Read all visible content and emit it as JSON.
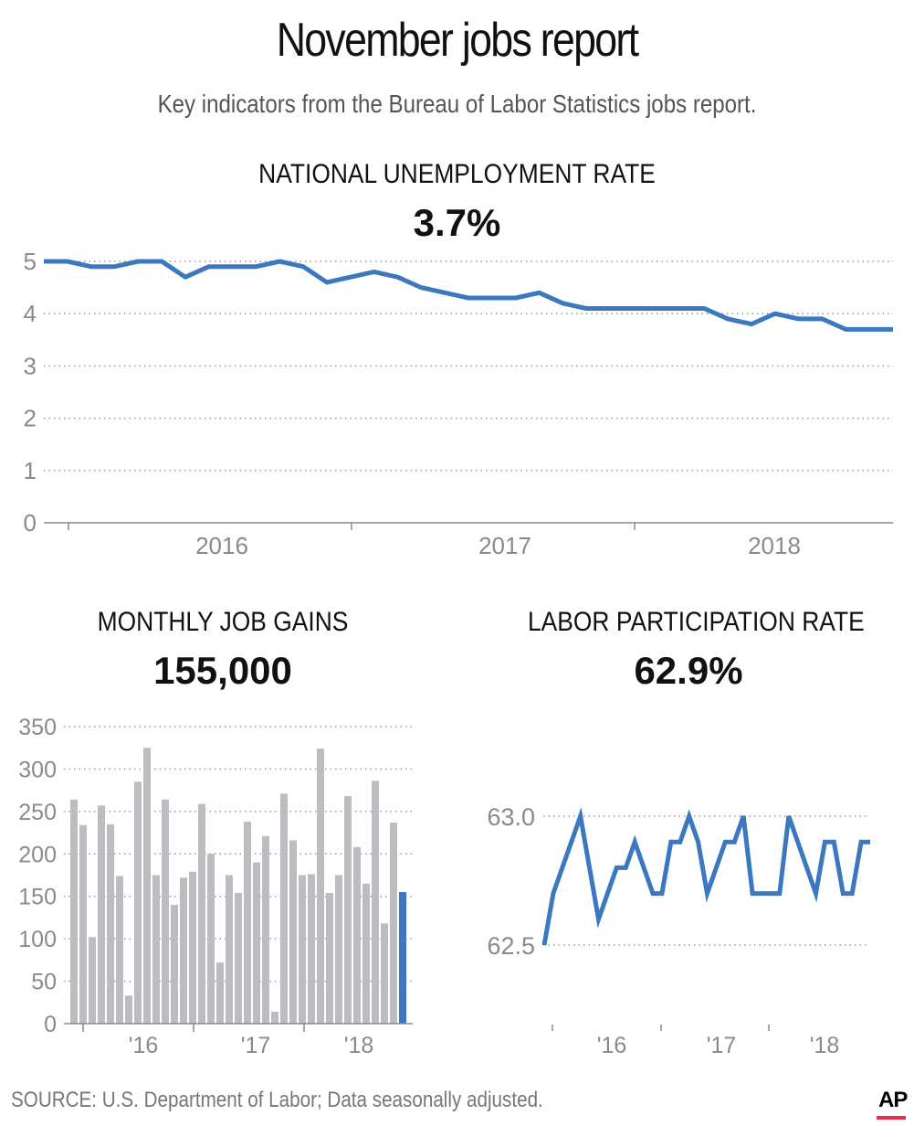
{
  "header": {
    "title": "November jobs report",
    "subtitle": "Key indicators from the Bureau of Labor Statistics jobs report."
  },
  "footer": {
    "source": "SOURCE: U.S. Department of Labor; Data seasonally adjusted.",
    "logo": "AP"
  },
  "colors": {
    "line": "#3b78c0",
    "bar": "#bcbdc0",
    "highlight_bar": "#3b78c0",
    "grid": "#999999",
    "logo_underline": "#e8304a"
  },
  "chart_data": [
    {
      "type": "line",
      "title": "NATIONAL UNEMPLOYMENT RATE",
      "headline_value": "3.7%",
      "ylim": [
        0,
        5
      ],
      "yticks": [
        "0",
        "1",
        "2",
        "3",
        "4",
        "5"
      ],
      "xtick_labels": [
        "2016",
        "2017",
        "2018"
      ],
      "grid": true,
      "values": [
        5.0,
        5.0,
        4.9,
        4.9,
        5.0,
        5.0,
        4.7,
        4.9,
        4.9,
        4.9,
        5.0,
        4.9,
        4.6,
        4.7,
        4.8,
        4.7,
        4.5,
        4.4,
        4.3,
        4.3,
        4.3,
        4.4,
        4.2,
        4.1,
        4.1,
        4.1,
        4.1,
        4.1,
        4.1,
        3.9,
        3.8,
        4.0,
        3.9,
        3.9,
        3.7,
        3.7,
        3.7
      ]
    },
    {
      "type": "bar",
      "title": "MONTHLY JOB GAINS",
      "headline_value": "155,000",
      "ylim": [
        0,
        350
      ],
      "yticks": [
        "0",
        "50",
        "100",
        "150",
        "200",
        "250",
        "300",
        "350"
      ],
      "xtick_labels": [
        "'16",
        "'17",
        "'18"
      ],
      "grid": true,
      "values": [
        264,
        234,
        102,
        257,
        235,
        174,
        33,
        285,
        325,
        175,
        264,
        140,
        172,
        179,
        259,
        200,
        72,
        175,
        154,
        238,
        190,
        221,
        14,
        271,
        216,
        175,
        176,
        324,
        154,
        175,
        268,
        208,
        165,
        286,
        118,
        237,
        155
      ]
    },
    {
      "type": "line",
      "title": "LABOR PARTICIPATION RATE",
      "headline_value": "62.9%",
      "ylim": [
        62.5,
        63.0
      ],
      "yticks": [
        "62.5",
        "63.0"
      ],
      "xtick_labels": [
        "'16",
        "'17",
        "'18"
      ],
      "grid": true,
      "values": [
        62.5,
        62.7,
        62.8,
        62.9,
        63.0,
        62.8,
        62.6,
        62.7,
        62.8,
        62.8,
        62.9,
        62.8,
        62.7,
        62.7,
        62.9,
        62.9,
        63.0,
        62.9,
        62.7,
        62.8,
        62.9,
        62.9,
        63.0,
        62.7,
        62.7,
        62.7,
        62.7,
        63.0,
        62.9,
        62.8,
        62.7,
        62.9,
        62.9,
        62.7,
        62.7,
        62.9,
        62.9
      ]
    }
  ]
}
